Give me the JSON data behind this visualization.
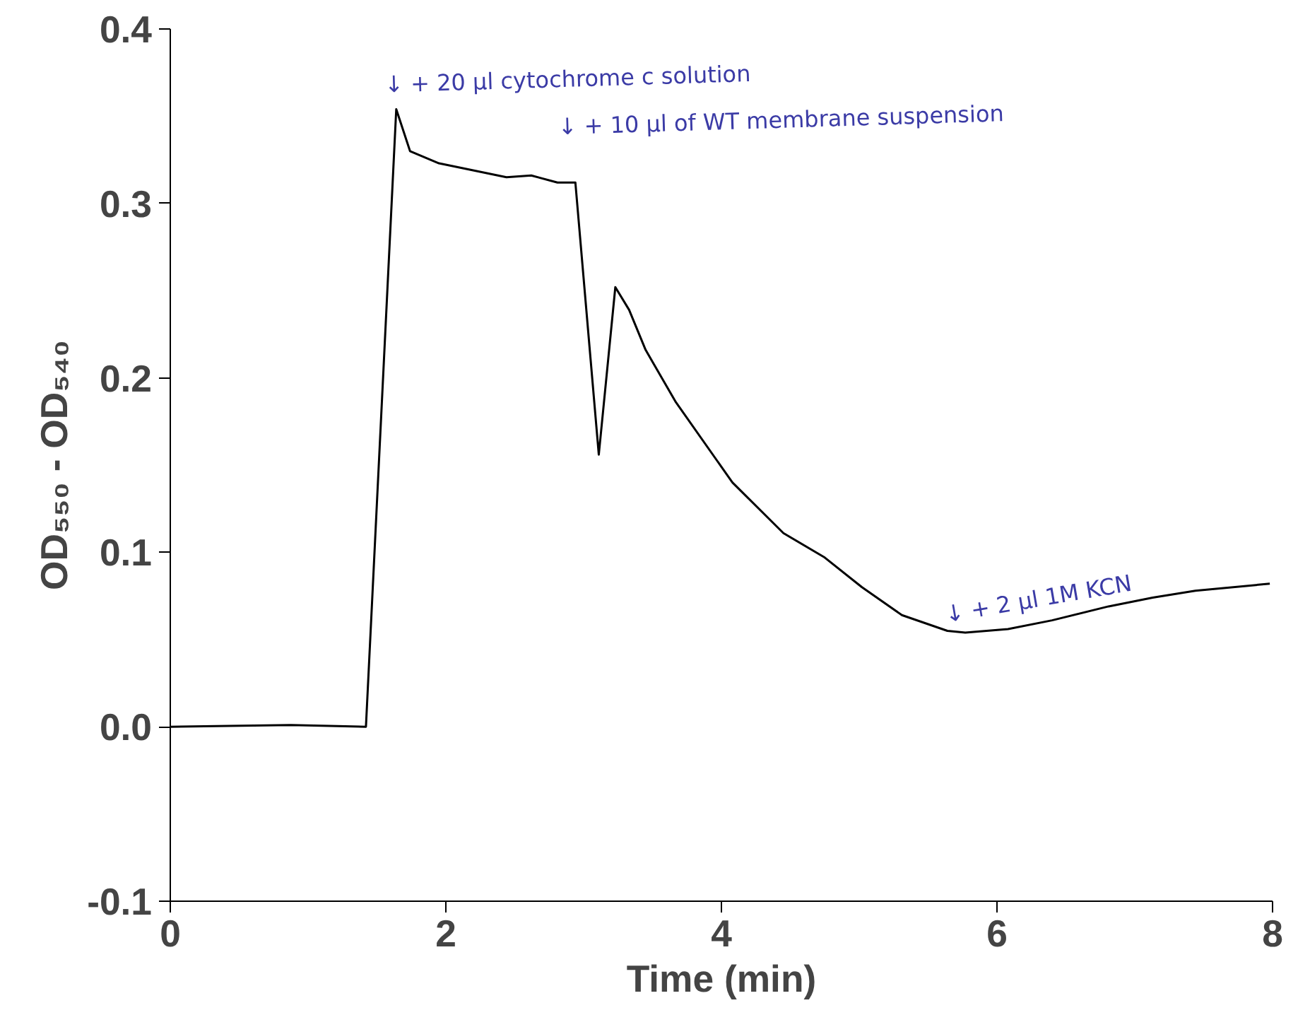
{
  "chart_data": {
    "type": "line",
    "xlabel": "Time (min)",
    "ylabel": "OD₅₅₀ - OD₅₄₀",
    "x": [
      0,
      0.875,
      1.42,
      1.64,
      1.74,
      1.95,
      2.44,
      2.62,
      2.81,
      2.94,
      3.11,
      3.23,
      3.33,
      3.45,
      3.67,
      4.08,
      4.45,
      4.75,
      5.02,
      5.31,
      5.64,
      5.77,
      6.08,
      6.4,
      6.81,
      7.13,
      7.44,
      7.98
    ],
    "series": [
      {
        "color": "#000000",
        "values": [
          0.0,
          0.001,
          0.0,
          0.354,
          0.33,
          0.323,
          0.315,
          0.316,
          0.312,
          0.312,
          0.156,
          0.252,
          0.239,
          0.216,
          0.186,
          0.14,
          0.111,
          0.097,
          0.08,
          0.064,
          0.055,
          0.054,
          0.056,
          0.061,
          0.069,
          0.074,
          0.078,
          0.082
        ]
      }
    ],
    "xlim": [
      0,
      8
    ],
    "ylim": [
      -0.1,
      0.4
    ],
    "xticks": [
      0,
      2,
      4,
      6,
      8
    ],
    "yticks": [
      {
        "value": -0.1,
        "label": "-0.1"
      },
      {
        "value": 0,
        "label": "0.0"
      },
      0.1,
      0.2,
      0.3,
      0.4
    ],
    "grid": false,
    "marker": "none",
    "line_style": "solid",
    "annotations": [
      {
        "text": "↓ + 20 µl cytochrome c solution",
        "x": 1.64,
        "y": 0.354
      },
      {
        "text": "↓ + 10 µl of WT membrane suspension",
        "x": 2.94,
        "y": 0.312
      },
      {
        "text": "↓ + 2 µl 1M KCN",
        "x": 5.64,
        "y": 0.055
      }
    ]
  }
}
